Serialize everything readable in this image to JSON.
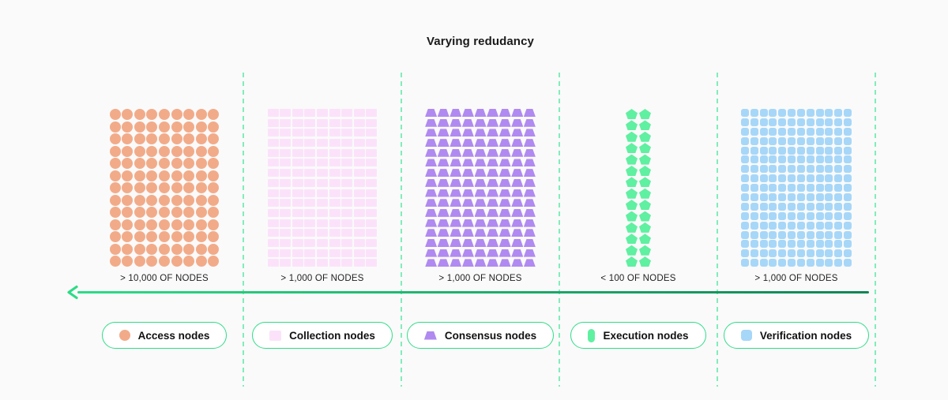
{
  "title": "Varying redudancy",
  "axis": {
    "direction": "left",
    "color_start": "#2bdc86",
    "color_end": "#0e8554"
  },
  "divider_color": "#80edbc",
  "legend_border_color": "#2fdd88",
  "background_color": "#fafafa",
  "sections": [
    {
      "id": "access",
      "count_label": "> 10,000 OF NODES",
      "legend_label": "Access nodes",
      "shape": "circle",
      "color": "#f2ab89",
      "cols": 9,
      "rows": 13
    },
    {
      "id": "collection",
      "count_label": "> 1,000 OF NODES",
      "legend_label": "Collection nodes",
      "shape": "rect",
      "color": "#fbe2fa",
      "cols": 9,
      "rows": 16
    },
    {
      "id": "consensus",
      "count_label": "> 1,000 OF NODES",
      "legend_label": "Consensus nodes",
      "shape": "trapezoid",
      "color": "#b08af0",
      "cols": 9,
      "rows": 16
    },
    {
      "id": "execution",
      "count_label": "< 100 OF NODES",
      "legend_label": "Execution nodes",
      "shape": "pentagon",
      "color": "#5ff0a1",
      "cols": 2,
      "rows": 14
    },
    {
      "id": "verification",
      "count_label": "> 1,000 OF NODES",
      "legend_label": "Verification nodes",
      "shape": "square",
      "color": "#a7d7f8",
      "cols": 12,
      "rows": 17
    }
  ]
}
